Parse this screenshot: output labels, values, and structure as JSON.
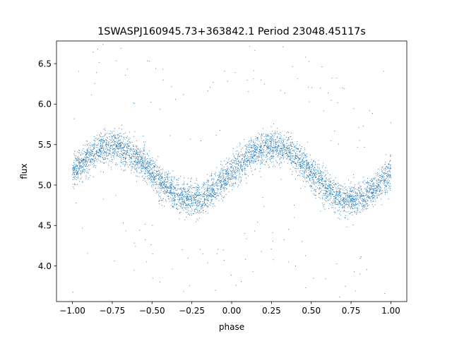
{
  "chart_data": {
    "type": "scatter",
    "title": "1SWASPJ160945.73+363842.1 Period 23048.45117s",
    "xlabel": "phase",
    "ylabel": "flux",
    "xlim": [
      -1.1,
      1.1
    ],
    "ylim": [
      3.56,
      6.78
    ],
    "x_ticks": [
      -1.0,
      -0.75,
      -0.5,
      -0.25,
      0.0,
      0.25,
      0.5,
      0.75,
      1.0
    ],
    "x_tick_labels": [
      "−1.00",
      "−0.75",
      "−0.50",
      "−0.25",
      "0.00",
      "0.25",
      "0.50",
      "0.75",
      "1.00"
    ],
    "y_ticks": [
      4.0,
      4.5,
      5.0,
      5.5,
      6.0,
      6.5
    ],
    "y_tick_labels": [
      "4.0",
      "4.5",
      "5.0",
      "5.5",
      "6.0",
      "6.5"
    ],
    "grid": false,
    "marker_color": "#1f77b4",
    "series": [
      {
        "model": "sinusoid",
        "phase_range": [
          -1.0,
          1.0
        ],
        "mean_flux": 5.15,
        "amplitude": 0.33,
        "peak_phases": [
          -0.75,
          0.25
        ],
        "trough_phases": [
          -0.25,
          0.75
        ],
        "scatter_sigma": 0.1,
        "point_count": 5200,
        "outlier_fraction": 0.03
      }
    ]
  }
}
